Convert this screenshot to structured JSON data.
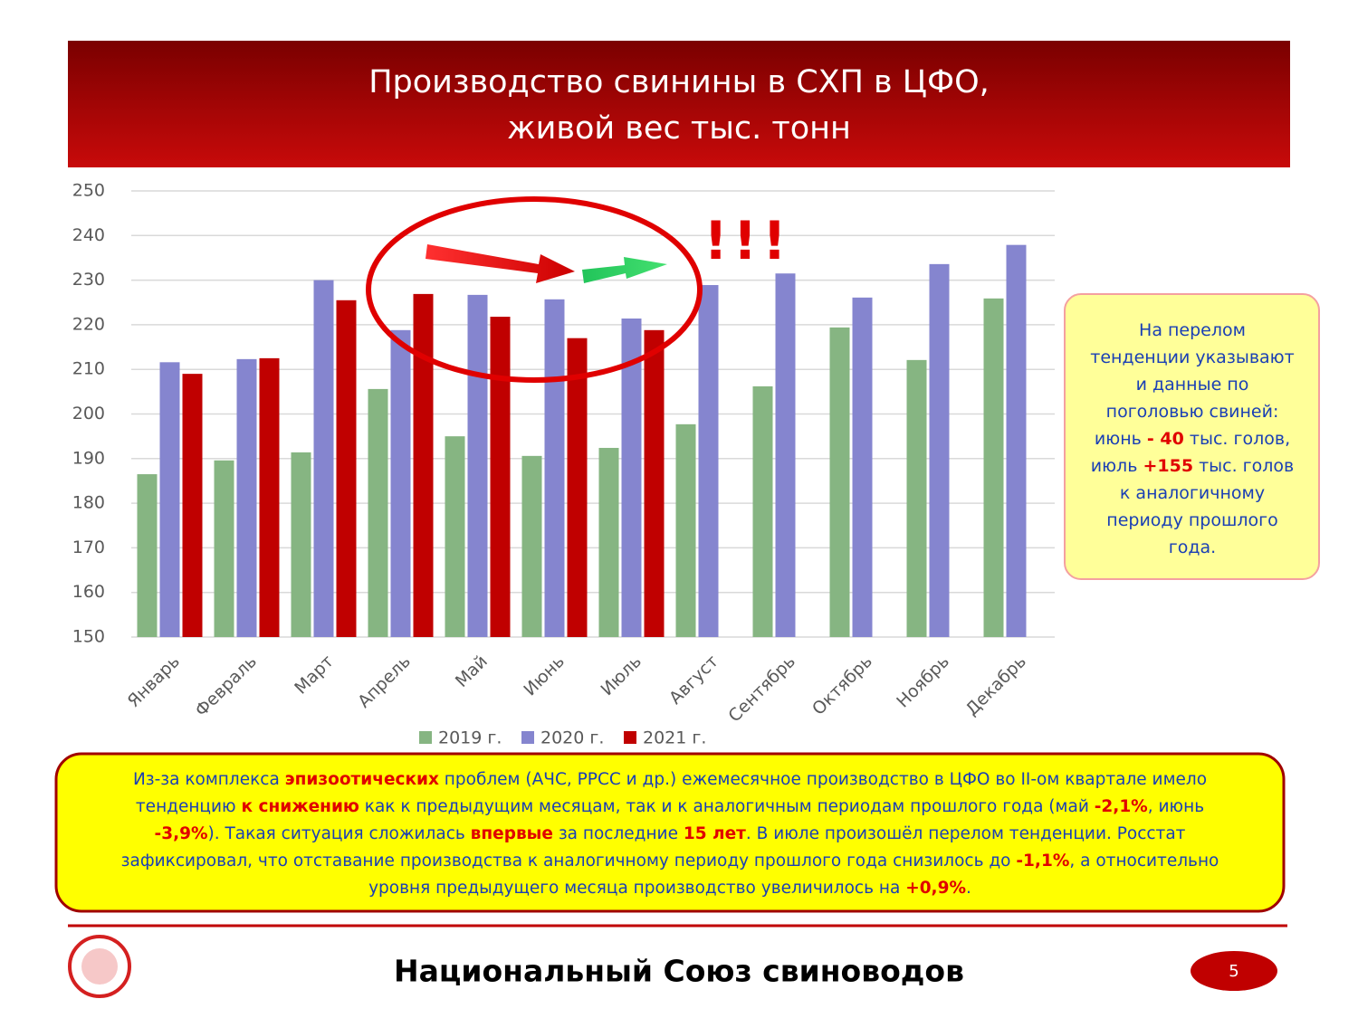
{
  "header": {
    "title_lines": [
      "Производство свинины в СХП в ЦФО,",
      "живой вес тыс. тонн"
    ]
  },
  "chart_data": {
    "type": "bar",
    "categories": [
      "Январь",
      "Февраль",
      "Март",
      "Апрель",
      "Май",
      "Июнь",
      "Июль",
      "Август",
      "Сентябрь",
      "Октябрь",
      "Ноябрь",
      "Декабрь"
    ],
    "series": [
      {
        "name": "2019 г.",
        "color": "#86b582",
        "values": [
          186.5,
          189.6,
          191.4,
          205.6,
          195,
          190.6,
          192.4,
          197.7,
          206.2,
          219.4,
          212.1,
          225.9
        ]
      },
      {
        "name": "2020 г.",
        "color": "#8585cf",
        "values": [
          211.6,
          212.3,
          230,
          218.8,
          226.7,
          225.7,
          221.4,
          228.9,
          231.5,
          226.1,
          233.6,
          237.9
        ]
      },
      {
        "name": "2021 г.",
        "color": "#c00000",
        "values": [
          209,
          212.5,
          225.5,
          226.9,
          221.8,
          217,
          218.8,
          null,
          null,
          null,
          null,
          null
        ]
      }
    ],
    "ylim": [
      150,
      250
    ],
    "yticks": [
      150,
      160,
      170,
      180,
      190,
      200,
      210,
      220,
      230,
      240,
      250
    ],
    "grid": true,
    "annotation": "!!!"
  },
  "note": {
    "lines": [
      [
        {
          "text": "На перелом"
        }
      ],
      [
        {
          "text": "тенденции указывают"
        }
      ],
      [
        {
          "text": "и данные по"
        }
      ],
      [
        {
          "text": "поголовью свиней:"
        }
      ],
      [
        {
          "text": "июнь "
        },
        {
          "text": "- 40",
          "em": true
        },
        {
          "text": " тыс. голов,"
        }
      ],
      [
        {
          "text": "июль "
        },
        {
          "text": "+155",
          "em": true
        },
        {
          "text": " тыс. голов"
        }
      ],
      [
        {
          "text": "к аналогичному"
        }
      ],
      [
        {
          "text": "периоду прошлого"
        }
      ],
      [
        {
          "text": "года."
        }
      ]
    ]
  },
  "summary": {
    "lines": [
      [
        {
          "text": "Из-за комплекса "
        },
        {
          "text": "эпизоотических",
          "em": true
        },
        {
          "text": " проблем (АЧС, РРСС и др.) ежемесячное производство в ЦФО во II-ом квартале имело"
        }
      ],
      [
        {
          "text": "тенденцию "
        },
        {
          "text": "к снижению",
          "em": true
        },
        {
          "text": " как к предыдущим месяцам, так и к аналогичным периодам прошлого года (май "
        },
        {
          "text": "-2,1%",
          "em": true
        },
        {
          "text": ", июнь"
        }
      ],
      [
        {
          "text": "-3,9%",
          "em": true
        },
        {
          "text": "). Такая ситуация сложилась "
        },
        {
          "text": "впервые",
          "em": true
        },
        {
          "text": " за последние "
        },
        {
          "text": "15 лет",
          "em": true
        },
        {
          "text": ". В июле произошёл перелом тенденции. Росстат"
        }
      ],
      [
        {
          "text": "зафиксировал, что отставание производства к аналогичному периоду прошлого года снизилось до "
        },
        {
          "text": "-1,1%",
          "em": true
        },
        {
          "text": ", а относительно"
        }
      ],
      [
        {
          "text": "уровня предыдущего месяца производство увеличилось на "
        },
        {
          "text": "+0,9%",
          "em": true
        },
        {
          "text": "."
        }
      ]
    ]
  },
  "footer": {
    "organization": "Национальный Союз свиноводов",
    "page": "5"
  }
}
